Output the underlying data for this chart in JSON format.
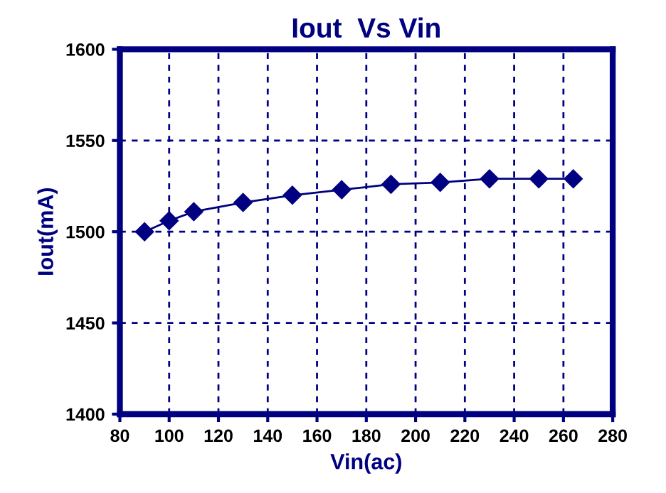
{
  "chart_data": {
    "type": "line",
    "title": "Iout  Vs Vin",
    "xlabel": "Vin(ac)",
    "ylabel": "Iout(mA)",
    "series": [
      {
        "color": "#000080",
        "x": [
          90,
          100,
          110,
          130,
          150,
          170,
          190,
          210,
          230,
          250,
          264
        ],
        "values": [
          1500,
          1506,
          1511,
          1516,
          1520,
          1523,
          1526,
          1527,
          1529,
          1529,
          1529
        ]
      }
    ],
    "xlim": [
      80,
      280
    ],
    "xticks": [
      80,
      100,
      120,
      140,
      160,
      180,
      200,
      220,
      240,
      260,
      280
    ],
    "ylim": [
      1400,
      1600
    ],
    "yticks": [
      1400,
      1450,
      1500,
      1550,
      1600
    ],
    "grid": true,
    "marker": "diamond",
    "line_style": "solid"
  }
}
